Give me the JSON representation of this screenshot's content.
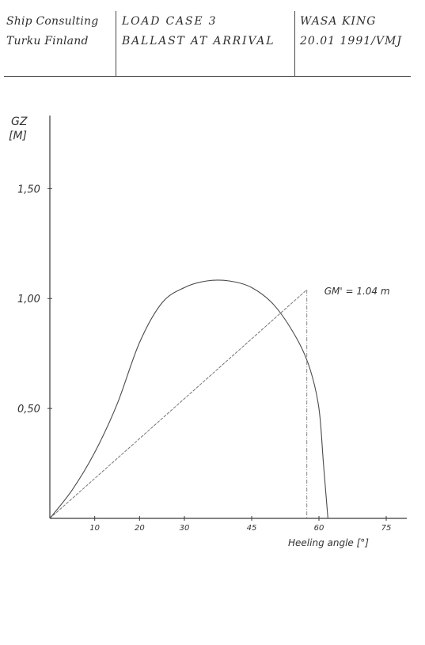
{
  "title_block": {
    "company_line1": "Ship Consulting",
    "company_line2": "Turku Finland",
    "case_line1": "LOAD CASE 3",
    "case_line2": "BALLAST AT ARRIVAL",
    "ref_line1": "WASA KING",
    "ref_line2": "20.01 1991/VMJ"
  },
  "chart_data": {
    "type": "line",
    "title": "",
    "ylabel_line1": "GZ",
    "ylabel_line2": "[M]",
    "xlabel": "Heeling angle [°]",
    "xlim": [
      0,
      78
    ],
    "ylim": [
      0,
      1.8
    ],
    "y_ticks": [
      {
        "value": 0.5,
        "label": "0,50"
      },
      {
        "value": 1.0,
        "label": "1,00"
      },
      {
        "value": 1.5,
        "label": "1,50"
      }
    ],
    "x_ticks": [
      {
        "value": 10,
        "label": "10"
      },
      {
        "value": 20,
        "label": "20"
      },
      {
        "value": 30,
        "label": "30"
      },
      {
        "value": 45,
        "label": "45"
      },
      {
        "value": 60,
        "label": "60"
      },
      {
        "value": 75,
        "label": "75"
      }
    ],
    "grid": false,
    "series": [
      {
        "name": "",
        "x": [
          0,
          5,
          10,
          15,
          20,
          25,
          30,
          35,
          40,
          45,
          50,
          55,
          58,
          60,
          61,
          62
        ],
        "y": [
          0,
          0.13,
          0.3,
          0.52,
          0.8,
          0.98,
          1.05,
          1.08,
          1.08,
          1.05,
          0.97,
          0.82,
          0.68,
          0.5,
          0.25,
          0
        ]
      }
    ],
    "tangent_line": {
      "from_x": 0,
      "from_y": 0,
      "to_x": 57.3,
      "to_y": 1.04
    },
    "reference_x": 57.3,
    "annotation": "GM' = 1.04 m"
  }
}
